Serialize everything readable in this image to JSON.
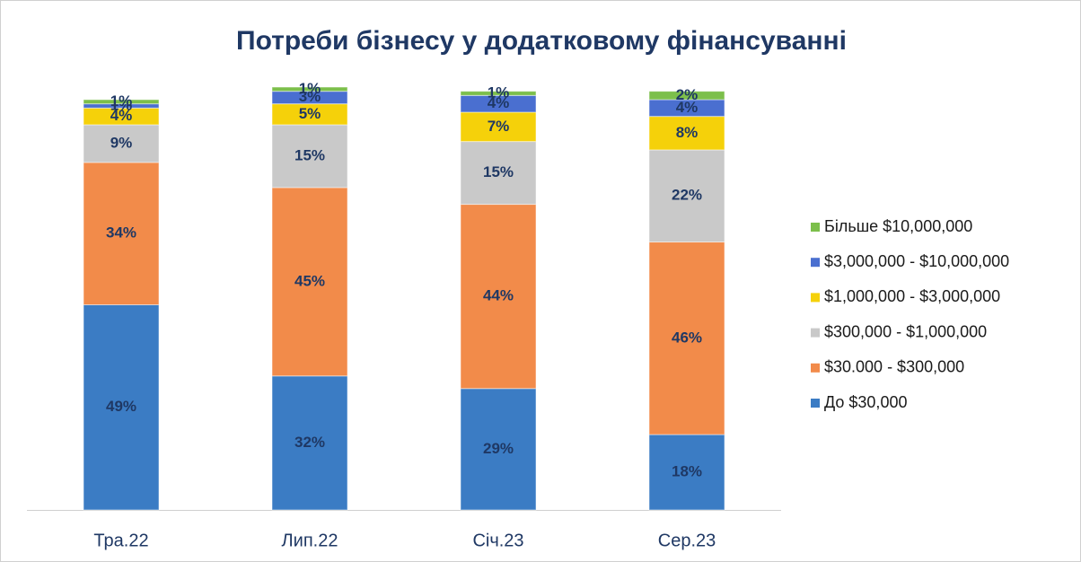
{
  "chart_data": {
    "type": "stacked_bar",
    "title": "Потреби бізнесу у додатковому фінансуванні",
    "categories": [
      "Тра.22",
      "Лип.22",
      "Січ.23",
      "Сер.23"
    ],
    "series": [
      {
        "name": "До $30,000",
        "color": "#3b7cc4",
        "values": [
          49,
          32,
          29,
          18
        ],
        "value_labels": [
          "49%",
          "32%",
          "29%",
          "18%"
        ]
      },
      {
        "name": "$30.000 - $300,000",
        "color": "#f28b4a",
        "values": [
          34,
          45,
          44,
          46
        ],
        "value_labels": [
          "34%",
          "45%",
          "44%",
          "46%"
        ]
      },
      {
        "name": "$300,000 - $1,000,000",
        "color": "#c9c9c9",
        "values": [
          9,
          15,
          15,
          22
        ],
        "value_labels": [
          "9%",
          "15%",
          "15%",
          "22%"
        ]
      },
      {
        "name": "$1,000,000 - $3,000,000",
        "color": "#f5d10a",
        "values": [
          4,
          5,
          7,
          8
        ],
        "value_labels": [
          "4%",
          "5%",
          "7%",
          "8%"
        ]
      },
      {
        "name": "$3,000,000 - $10,000,000",
        "color": "#4a6fd0",
        "values": [
          1,
          3,
          4,
          4
        ],
        "value_labels": [
          "1%",
          "3%",
          "4%",
          "4%"
        ]
      },
      {
        "name": "Більше $10,000,000",
        "color": "#7cbf4b",
        "values": [
          1,
          1,
          1,
          2
        ],
        "value_labels": [
          "1%",
          "1%",
          "1%",
          "2%"
        ]
      }
    ]
  }
}
